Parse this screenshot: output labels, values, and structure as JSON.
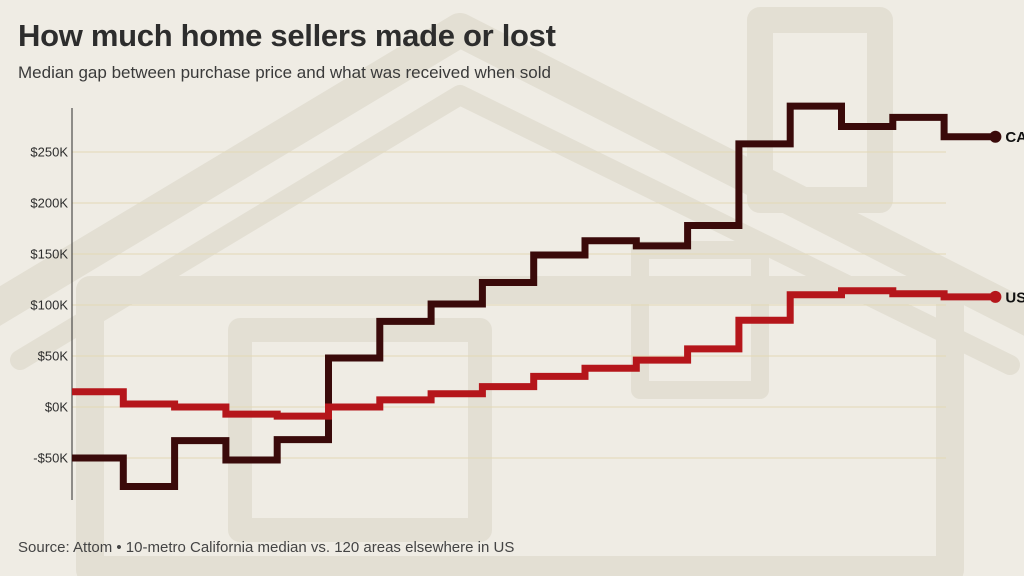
{
  "title": "How much home sellers made or lost",
  "subtitle": "Median gap between purchase price and what was received when sold",
  "source": "Source: Attom • 10-metro California median vs. 120 areas elsewhere in US",
  "colors": {
    "ca": "#3a0a0a",
    "us": "#b5161b",
    "grid": "#e3d9b6",
    "axis": "#2d2d2d"
  },
  "chart_data": {
    "type": "line",
    "step": true,
    "title": "How much home sellers made or lost",
    "subtitle": "Median gap between purchase price and what was received when sold",
    "x": [
      0,
      1,
      2,
      3,
      4,
      5,
      6,
      7,
      8,
      9,
      10,
      11,
      12,
      13,
      14,
      15,
      16,
      17
    ],
    "ylim": [
      -90000,
      295000
    ],
    "yticks": [
      -50000,
      0,
      50000,
      100000,
      150000,
      200000,
      250000
    ],
    "ytick_labels": [
      "-$50K",
      "$0K",
      "$50K",
      "$100K",
      "$150K",
      "$200K",
      "$250K"
    ],
    "grid": true,
    "series": [
      {
        "name": "CA",
        "values": [
          -50000,
          -78000,
          -33000,
          -52000,
          -32000,
          48000,
          84000,
          101000,
          122000,
          149000,
          163000,
          158000,
          178000,
          258000,
          295000,
          275000,
          284000,
          265000
        ]
      },
      {
        "name": "US",
        "values": [
          15000,
          3000,
          0,
          -7000,
          -9000,
          0,
          7000,
          13000,
          20000,
          30000,
          38000,
          46000,
          57000,
          85000,
          110000,
          114000,
          111000,
          108000
        ]
      }
    ]
  }
}
